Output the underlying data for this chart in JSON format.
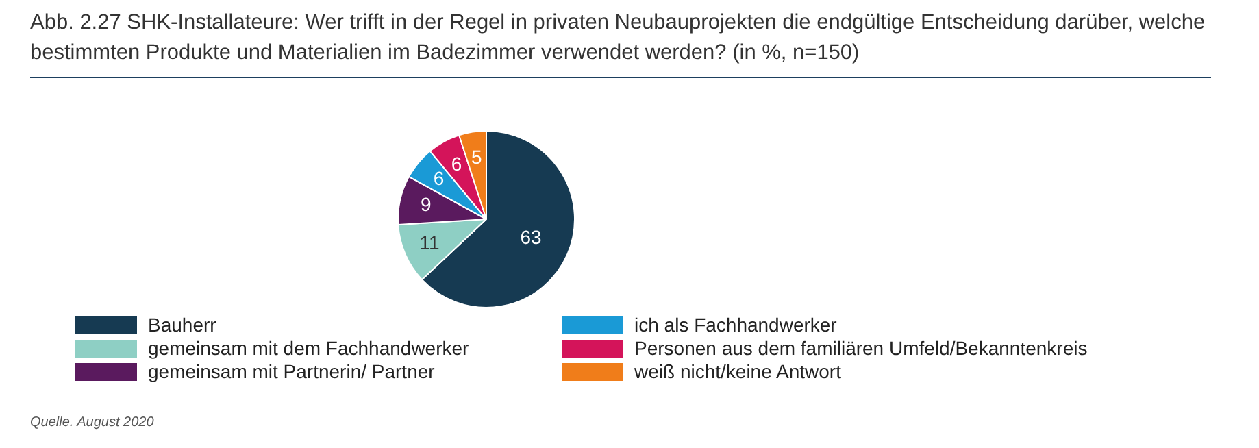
{
  "chart_data": {
    "type": "pie",
    "title": "Abb. 2.27 SHK-Installateure: Wer trifft in der Regel in privaten Neubauprojekten die endgültige Entscheidung darüber, welche bestimmten Produkte und Materialien im Badezimmer verwendet werden? (in %, n=150)",
    "categories": [
      "Bauherr",
      "gemeinsam mit dem Fachhandwerker",
      "gemeinsam mit Partnerin/ Partner",
      "ich als Fachhandwerker",
      "Personen aus dem familiären Umfeld/Bekanntenkreis",
      "weiß nicht/keine Antwort"
    ],
    "values": [
      63,
      11,
      9,
      6,
      6,
      5
    ],
    "colors": [
      "#163a52",
      "#8ecfc4",
      "#5a1a5e",
      "#1a9ad6",
      "#d4145a",
      "#f07d1a"
    ],
    "data_labels": true,
    "legend": "bottom",
    "annotations": [
      "Quelle. August 2020"
    ]
  }
}
